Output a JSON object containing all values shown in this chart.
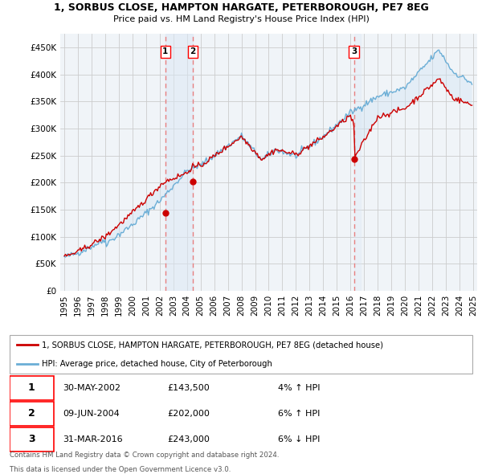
{
  "title": "1, SORBUS CLOSE, HAMPTON HARGATE, PETERBOROUGH, PE7 8EG",
  "subtitle": "Price paid vs. HM Land Registry's House Price Index (HPI)",
  "legend_line1": "1, SORBUS CLOSE, HAMPTON HARGATE, PETERBOROUGH, PE7 8EG (detached house)",
  "legend_line2": "HPI: Average price, detached house, City of Peterborough",
  "footer1": "Contains HM Land Registry data © Crown copyright and database right 2024.",
  "footer2": "This data is licensed under the Open Government Licence v3.0.",
  "transactions": [
    {
      "label": "1",
      "date": "30-MAY-2002",
      "price": 143500,
      "year": 2002.41,
      "pct": "4%",
      "dir": "↑"
    },
    {
      "label": "2",
      "date": "09-JUN-2004",
      "price": 202000,
      "year": 2004.44,
      "pct": "6%",
      "dir": "↑"
    },
    {
      "label": "3",
      "date": "31-MAR-2016",
      "price": 243000,
      "year": 2016.25,
      "pct": "6%",
      "dir": "↓"
    }
  ],
  "ylabel_ticks": [
    0,
    50000,
    100000,
    150000,
    200000,
    250000,
    300000,
    350000,
    400000,
    450000
  ],
  "ylabel_labels": [
    "£0",
    "£50K",
    "£100K",
    "£150K",
    "£200K",
    "£250K",
    "£300K",
    "£350K",
    "£400K",
    "£450K"
  ],
  "xlim": [
    1994.7,
    2025.3
  ],
  "ylim": [
    0,
    475000
  ],
  "xtick_years": [
    1995,
    1996,
    1997,
    1998,
    1999,
    2000,
    2001,
    2002,
    2003,
    2004,
    2005,
    2006,
    2007,
    2008,
    2009,
    2010,
    2011,
    2012,
    2013,
    2014,
    2015,
    2016,
    2017,
    2018,
    2019,
    2020,
    2021,
    2022,
    2023,
    2024,
    2025
  ],
  "hpi_color": "#6baed6",
  "hpi_fill_color": "#d0e4f5",
  "price_color": "#cc0000",
  "vline_color": "#e88080",
  "vfill_color": "#dce8f5",
  "marker_color": "#cc0000",
  "bg_color": "#ffffff",
  "grid_color": "#cccccc"
}
